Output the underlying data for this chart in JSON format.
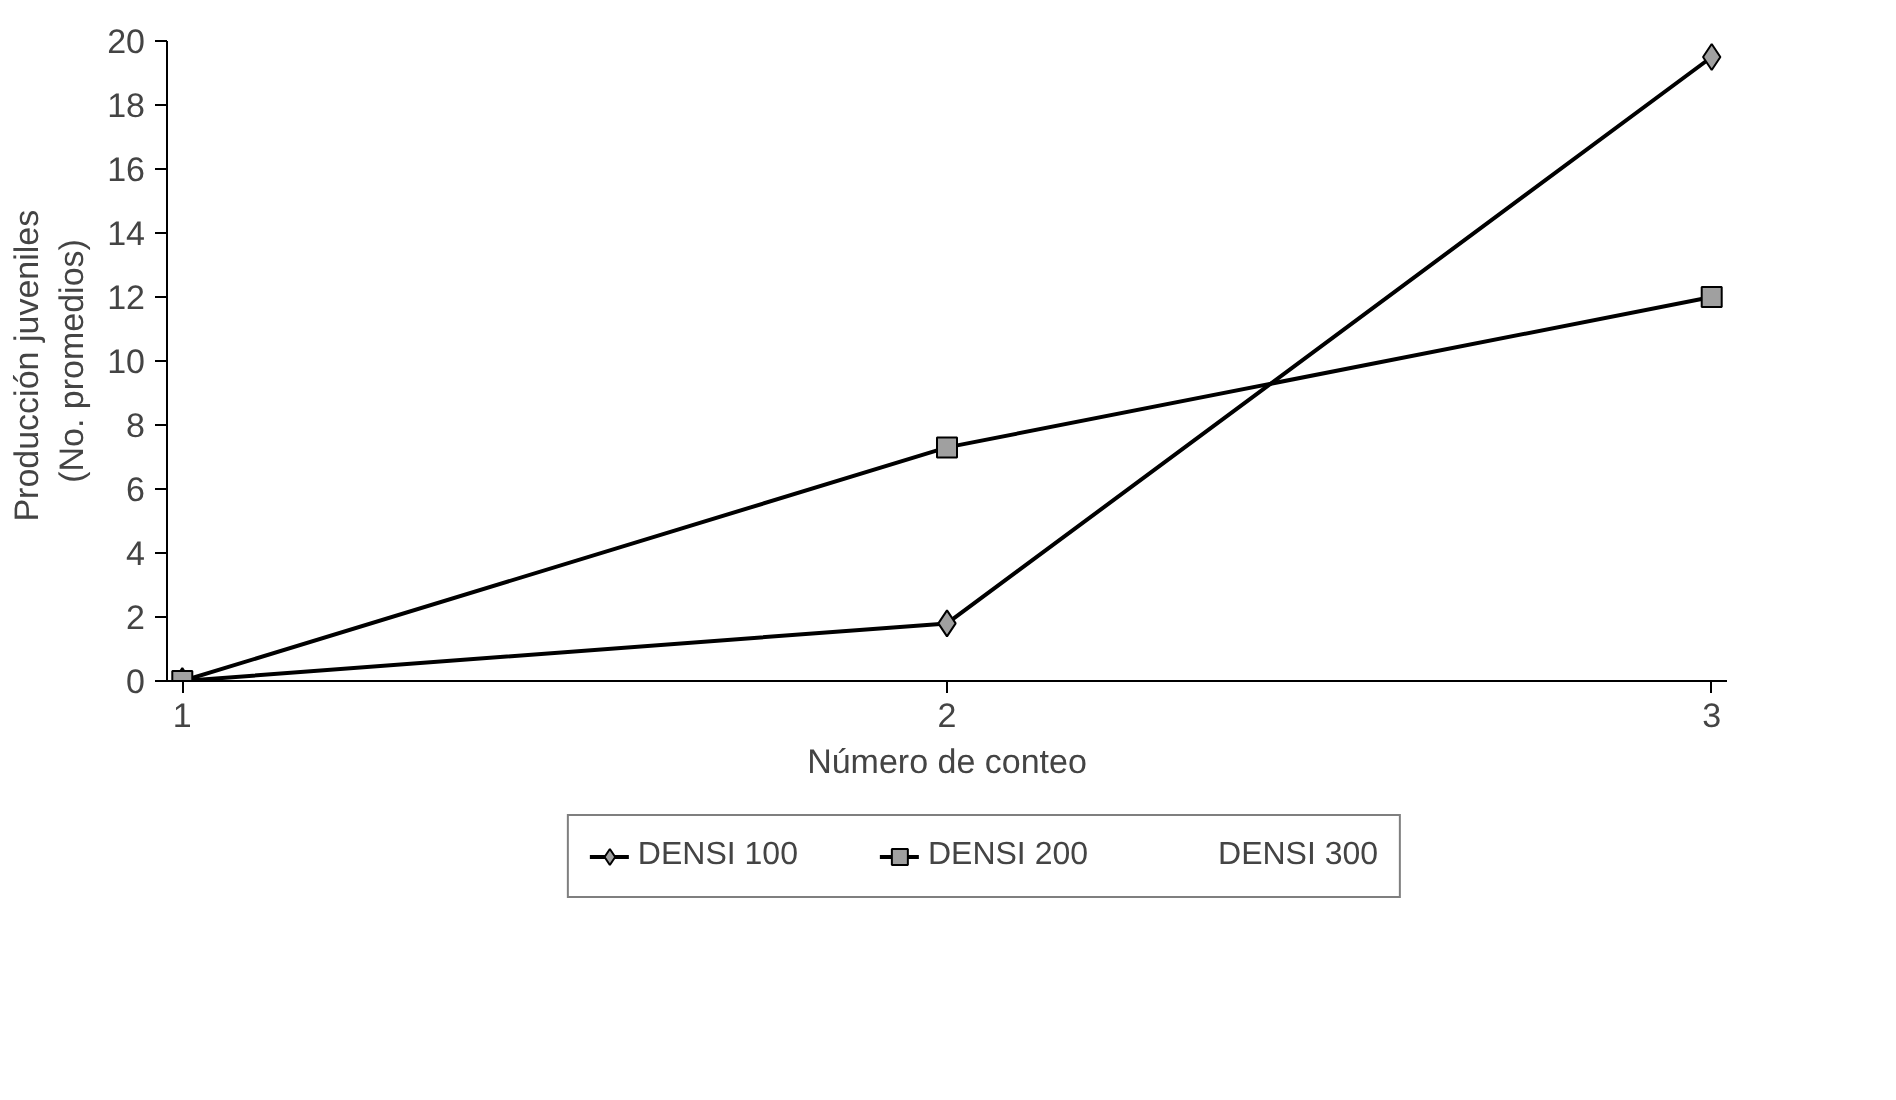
{
  "chart_data": {
    "type": "line",
    "xlabel": "Número de conteo",
    "ylabel": "Producción  juveniles\n(No. promedios)",
    "categories": [
      "1",
      "2",
      "3"
    ],
    "series": [
      {
        "name": "DENSI 100",
        "color": "#000000",
        "marker": "diamond",
        "values": [
          0,
          1.8,
          19.5
        ]
      },
      {
        "name": "DENSI 200",
        "color": "#000000",
        "marker": "square",
        "values": [
          0,
          7.3,
          12
        ]
      },
      {
        "name": "DENSI 300",
        "marker": "none",
        "values": [
          null,
          null,
          null
        ]
      }
    ],
    "ylim": [
      0,
      20
    ],
    "yticks": [
      0,
      2,
      4,
      6,
      8,
      10,
      12,
      14,
      16,
      18,
      20
    ],
    "grid": false,
    "legend": "bottom"
  }
}
